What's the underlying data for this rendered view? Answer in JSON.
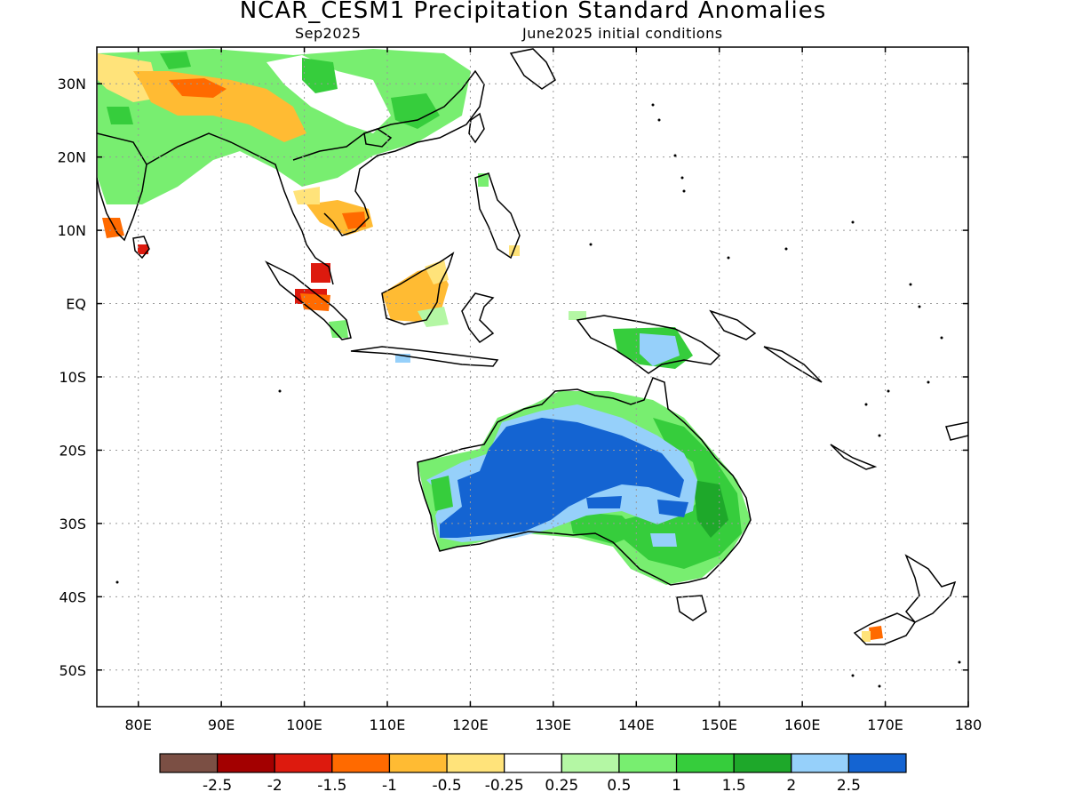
{
  "title": "NCAR_CESM1 Precipitation Standard Anomalies",
  "subtitle_left": "Sep2025",
  "subtitle_right": "June2025 initial conditions",
  "map": {
    "lon_range": [
      75,
      180
    ],
    "lat_range": [
      -55,
      35
    ],
    "lat_ticks": [
      "30N",
      "20N",
      "10N",
      "EQ",
      "10S",
      "20S",
      "30S",
      "40S",
      "50S"
    ],
    "lon_ticks": [
      "80E",
      "90E",
      "100E",
      "110E",
      "120E",
      "130E",
      "140E",
      "150E",
      "160E",
      "170E",
      "180"
    ],
    "grid": "dotted"
  },
  "colorbar": {
    "labels": [
      "-2.5",
      "-2",
      "-1.5",
      "-1",
      "-0.5",
      "-0.25",
      "0.25",
      "0.5",
      "1",
      "1.5",
      "2",
      "2.5"
    ],
    "colors": [
      "#7b4f44",
      "#a30000",
      "#dd1a0e",
      "#ff6a00",
      "#ffbb33",
      "#ffe37a",
      "#ffffff",
      "#b4f7a4",
      "#78ee70",
      "#36cd3c",
      "#1ea82a",
      "#96d0fa",
      "#1464d2"
    ]
  }
}
